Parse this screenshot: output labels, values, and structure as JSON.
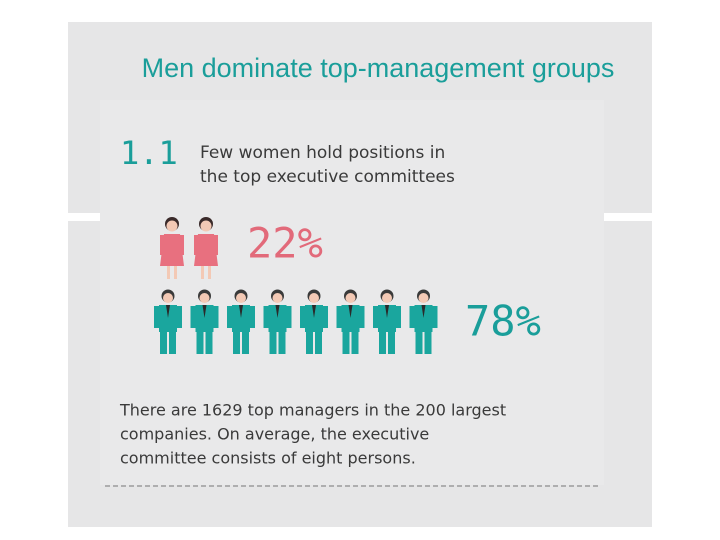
{
  "title": "Men dominate top-management groups",
  "section": {
    "number": "1.1",
    "heading": [
      "Few women hold positions in",
      "the top executive committees"
    ]
  },
  "women": {
    "label": "22%"
  },
  "men": {
    "label": "78%"
  },
  "body": [
    "There are 1629 top managers in the 200 largest",
    "companies. On average, the executive",
    "committee consists of eight persons."
  ]
}
